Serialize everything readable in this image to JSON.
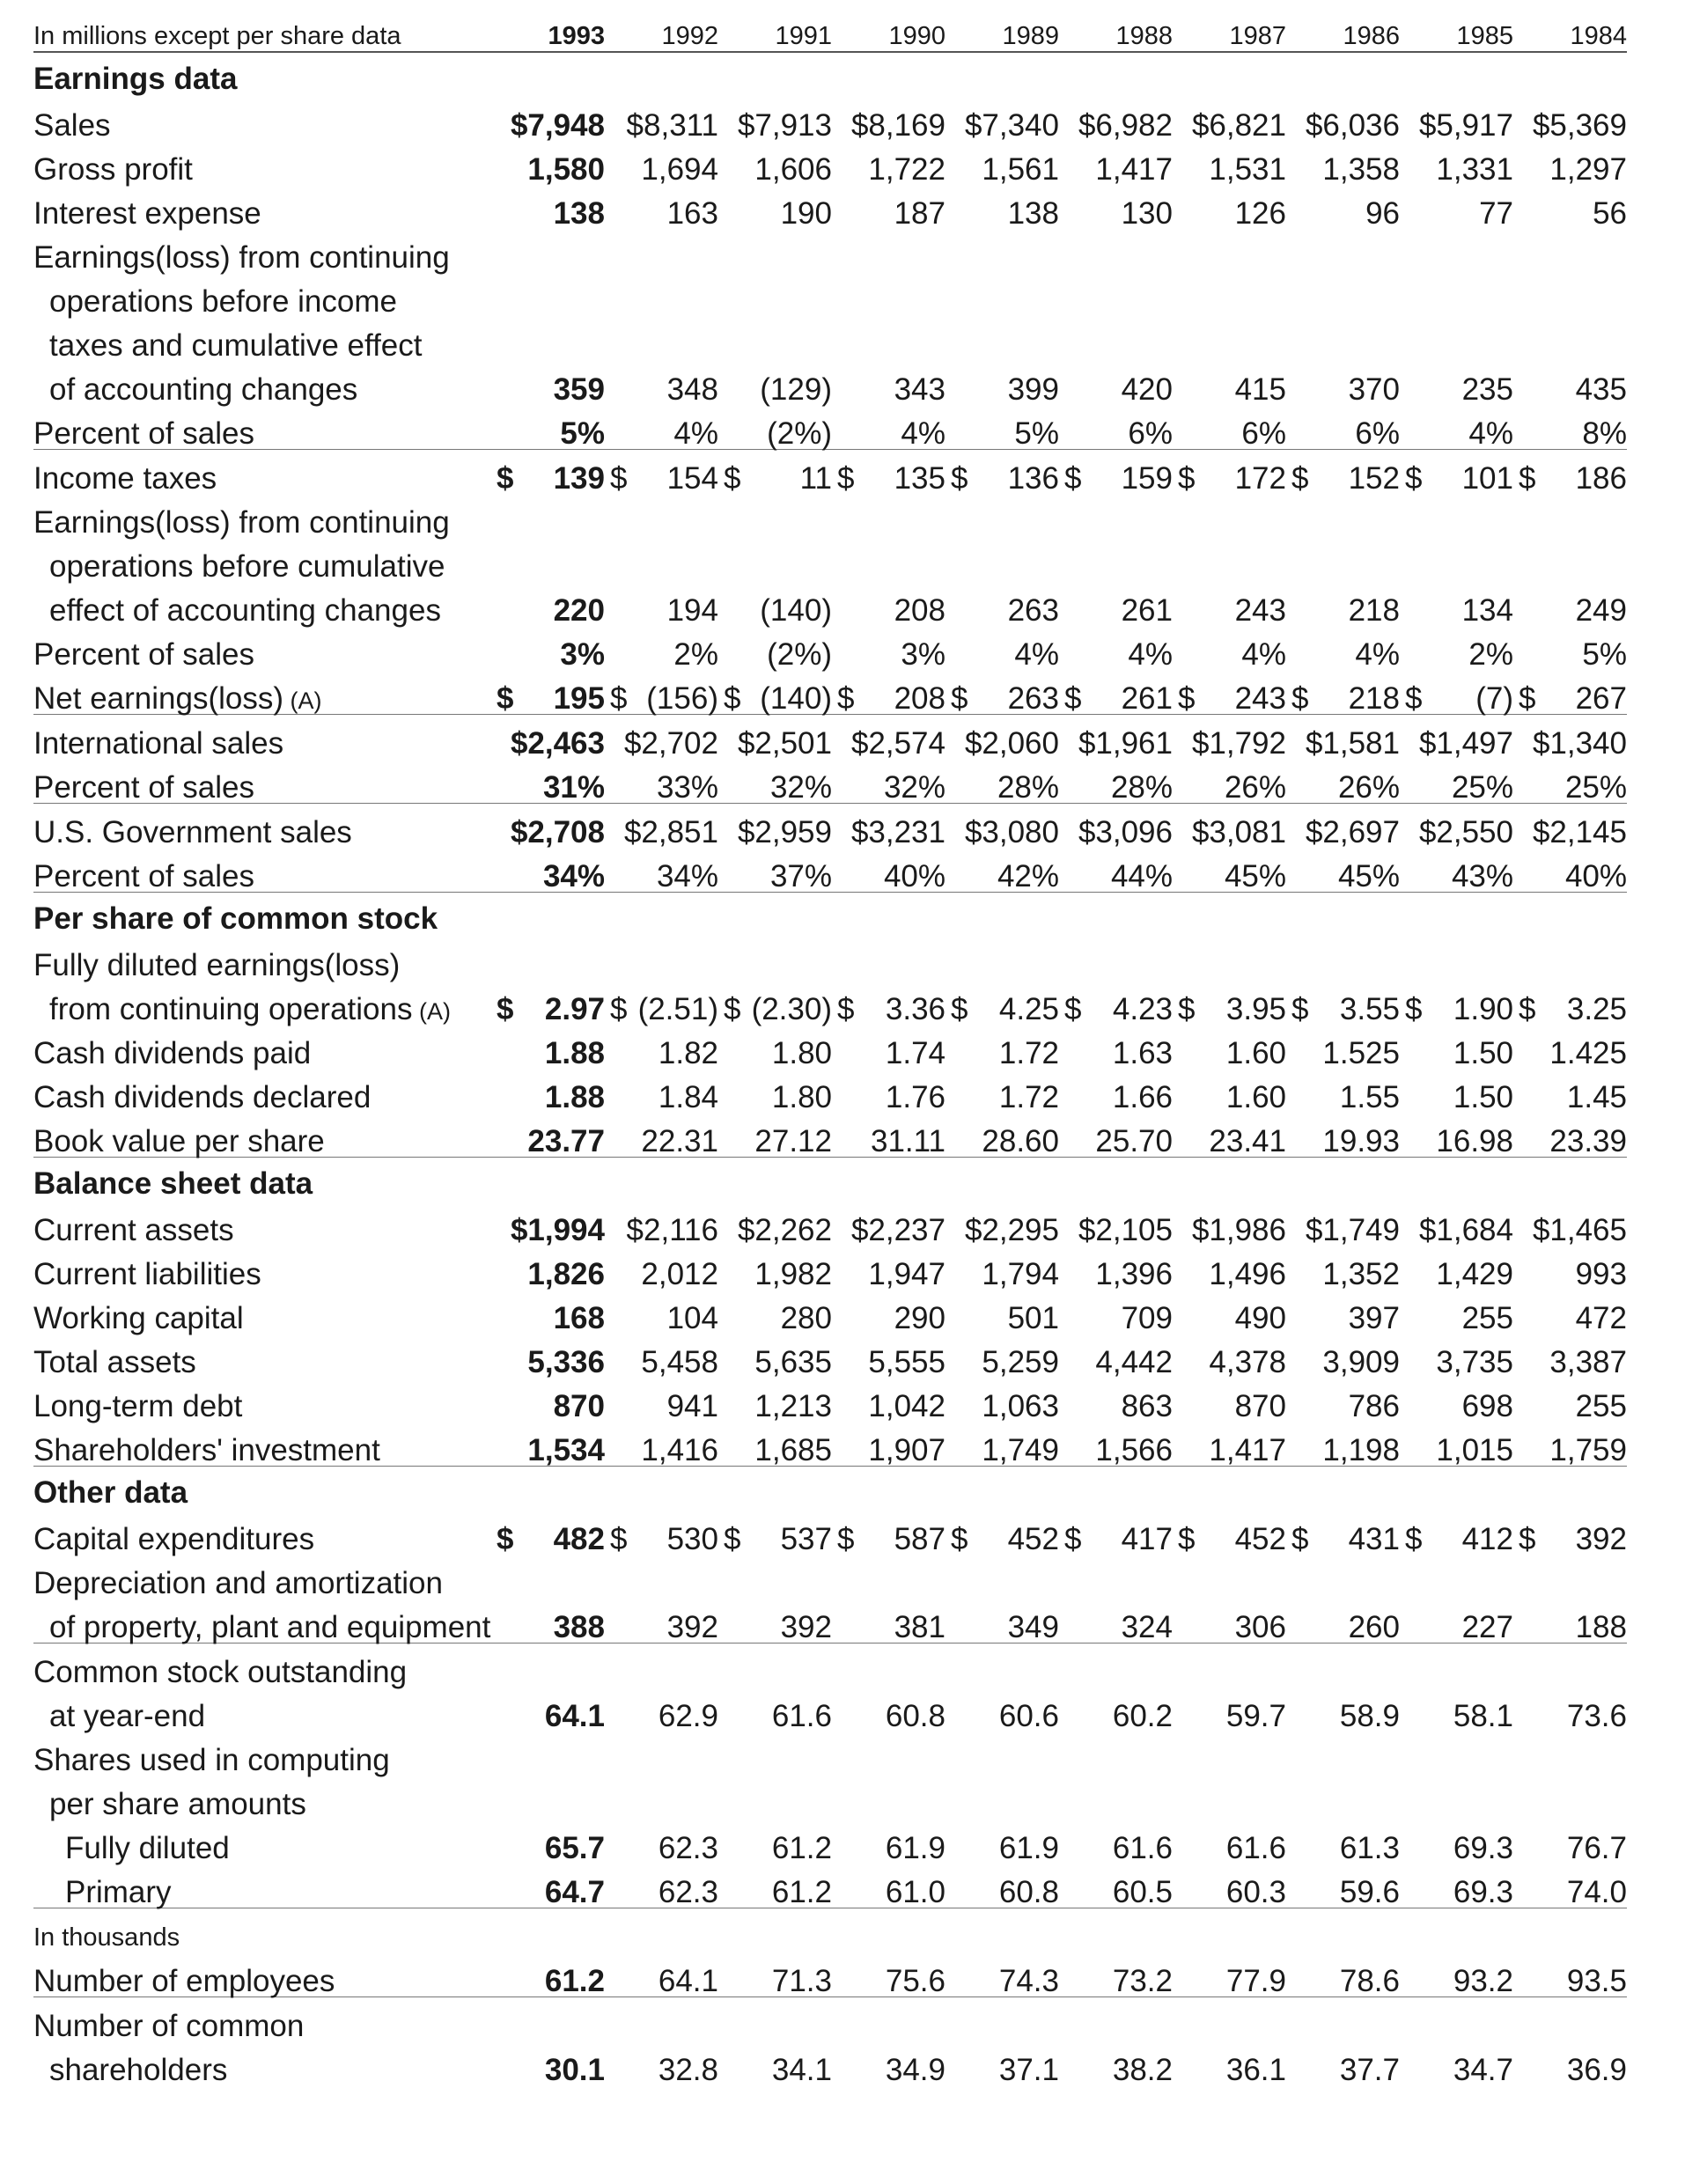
{
  "header": {
    "label": "In millions except per share data",
    "years": [
      "1993",
      "1992",
      "1991",
      "1990",
      "1989",
      "1988",
      "1987",
      "1986",
      "1985",
      "1984"
    ]
  },
  "earnings_data": {
    "title": "Earnings data",
    "rows": [
      {
        "label": "Sales",
        "dollar": true,
        "values": [
          "7,948",
          "8,311",
          "7,913",
          "8,169",
          "7,340",
          "6,982",
          "6,821",
          "6,036",
          "5,917",
          "5,369"
        ],
        "style": "inline"
      },
      {
        "label": "Gross profit",
        "values": [
          "1,580",
          "1,694",
          "1,606",
          "1,722",
          "1,561",
          "1,417",
          "1,531",
          "1,358",
          "1,331",
          "1,297"
        ]
      },
      {
        "label": "Interest expense",
        "values": [
          "138",
          "163",
          "190",
          "187",
          "138",
          "130",
          "126",
          "96",
          "77",
          "56"
        ]
      },
      {
        "label_lines": [
          "Earnings(loss) from continuing",
          "operations before income",
          "taxes and cumulative effect",
          "of accounting changes"
        ],
        "values": [
          "359",
          "348",
          "(129)",
          "343",
          "399",
          "420",
          "415",
          "370",
          "235",
          "435"
        ]
      },
      {
        "label": "Percent of sales",
        "values": [
          "5%",
          "4%",
          "(2%)",
          "4%",
          "5%",
          "6%",
          "6%",
          "6%",
          "4%",
          "8%"
        ]
      },
      {
        "label": "Income taxes",
        "dollar": true,
        "values": [
          "139",
          "154",
          "11",
          "135",
          "136",
          "159",
          "172",
          "152",
          "101",
          "186"
        ]
      },
      {
        "label_lines": [
          "Earnings(loss) from continuing",
          "operations before cumulative",
          "effect of accounting changes"
        ],
        "values": [
          "220",
          "194",
          "(140)",
          "208",
          "263",
          "261",
          "243",
          "218",
          "134",
          "249"
        ]
      },
      {
        "label": "Percent of sales",
        "values": [
          "3%",
          "2%",
          "(2%)",
          "3%",
          "4%",
          "4%",
          "4%",
          "4%",
          "2%",
          "5%"
        ]
      },
      {
        "label": "Net earnings(loss)",
        "note": "(A)",
        "dollar": true,
        "values": [
          "195",
          "(156)",
          "(140)",
          "208",
          "263",
          "261",
          "243",
          "218",
          "(7)",
          "267"
        ]
      },
      {
        "label": "International sales",
        "dollar": true,
        "style": "inline",
        "values": [
          "2,463",
          "2,702",
          "2,501",
          "2,574",
          "2,060",
          "1,961",
          "1,792",
          "1,581",
          "1,497",
          "1,340"
        ]
      },
      {
        "label": "Percent of sales",
        "values": [
          "31%",
          "33%",
          "32%",
          "32%",
          "28%",
          "28%",
          "26%",
          "26%",
          "25%",
          "25%"
        ]
      },
      {
        "label": "U.S. Government sales",
        "dollar": true,
        "style": "inline",
        "values": [
          "2,708",
          "2,851",
          "2,959",
          "3,231",
          "3,080",
          "3,096",
          "3,081",
          "2,697",
          "2,550",
          "2,145"
        ]
      },
      {
        "label": "Percent of sales",
        "values": [
          "34%",
          "34%",
          "37%",
          "40%",
          "42%",
          "44%",
          "45%",
          "45%",
          "43%",
          "40%"
        ]
      }
    ]
  },
  "per_share": {
    "title": "Per share of common stock",
    "rows": [
      {
        "label_lines": [
          "Fully diluted earnings(loss)",
          "from continuing operations"
        ],
        "note": "(A)",
        "dollar": true,
        "values": [
          "2.97",
          "(2.51)",
          "(2.30)",
          "3.36",
          "4.25",
          "4.23",
          "3.95",
          "3.55",
          "1.90",
          "3.25"
        ]
      },
      {
        "label": "Cash dividends paid",
        "values": [
          "1.88",
          "1.82",
          "1.80",
          "1.74",
          "1.72",
          "1.63",
          "1.60",
          "1.525",
          "1.50",
          "1.425"
        ]
      },
      {
        "label": "Cash dividends declared",
        "values": [
          "1.88",
          "1.84",
          "1.80",
          "1.76",
          "1.72",
          "1.66",
          "1.60",
          "1.55",
          "1.50",
          "1.45"
        ]
      },
      {
        "label": "Book value per share",
        "values": [
          "23.77",
          "22.31",
          "27.12",
          "31.11",
          "28.60",
          "25.70",
          "23.41",
          "19.93",
          "16.98",
          "23.39"
        ]
      }
    ]
  },
  "balance_sheet": {
    "title": "Balance sheet data",
    "rows": [
      {
        "label": "Current assets",
        "dollar": true,
        "style": "inline",
        "values": [
          "1,994",
          "2,116",
          "2,262",
          "2,237",
          "2,295",
          "2,105",
          "1,986",
          "1,749",
          "1,684",
          "1,465"
        ]
      },
      {
        "label": "Current liabilities",
        "values": [
          "1,826",
          "2,012",
          "1,982",
          "1,947",
          "1,794",
          "1,396",
          "1,496",
          "1,352",
          "1,429",
          "993"
        ]
      },
      {
        "label": "Working capital",
        "values": [
          "168",
          "104",
          "280",
          "290",
          "501",
          "709",
          "490",
          "397",
          "255",
          "472"
        ]
      },
      {
        "label": "Total assets",
        "values": [
          "5,336",
          "5,458",
          "5,635",
          "5,555",
          "5,259",
          "4,442",
          "4,378",
          "3,909",
          "3,735",
          "3,387"
        ]
      },
      {
        "label": "Long-term debt",
        "values": [
          "870",
          "941",
          "1,213",
          "1,042",
          "1,063",
          "863",
          "870",
          "786",
          "698",
          "255"
        ]
      },
      {
        "label": "Shareholders' investment",
        "values": [
          "1,534",
          "1,416",
          "1,685",
          "1,907",
          "1,749",
          "1,566",
          "1,417",
          "1,198",
          "1,015",
          "1,759"
        ]
      }
    ]
  },
  "other_data": {
    "title": "Other data",
    "rows": [
      {
        "label": "Capital expenditures",
        "dollar": true,
        "values": [
          "482",
          "530",
          "537",
          "587",
          "452",
          "417",
          "452",
          "431",
          "412",
          "392"
        ]
      },
      {
        "label_lines": [
          "Depreciation and amortization",
          "of property, plant and equipment"
        ],
        "values": [
          "388",
          "392",
          "392",
          "381",
          "349",
          "324",
          "306",
          "260",
          "227",
          "188"
        ]
      },
      {
        "label_lines": [
          "Common stock outstanding",
          "at year-end"
        ],
        "values": [
          "64.1",
          "62.9",
          "61.6",
          "60.8",
          "60.6",
          "60.2",
          "59.7",
          "58.9",
          "58.1",
          "73.6"
        ]
      },
      {
        "label_lines": [
          "Shares used in computing",
          "per share amounts"
        ],
        "values": null
      },
      {
        "label": "Fully diluted",
        "indent": 2,
        "values": [
          "65.7",
          "62.3",
          "61.2",
          "61.9",
          "61.9",
          "61.6",
          "61.6",
          "61.3",
          "69.3",
          "76.7"
        ]
      },
      {
        "label": "Primary",
        "indent": 2,
        "values": [
          "64.7",
          "62.3",
          "61.2",
          "61.0",
          "60.8",
          "60.5",
          "60.3",
          "59.6",
          "69.3",
          "74.0"
        ]
      }
    ]
  },
  "thousands": {
    "unit_label": "In thousands",
    "rows": [
      {
        "label": "Number of employees",
        "values": [
          "61.2",
          "64.1",
          "71.3",
          "75.6",
          "74.3",
          "73.2",
          "77.9",
          "78.6",
          "93.2",
          "93.5"
        ]
      },
      {
        "label_lines": [
          "Number of common",
          "shareholders"
        ],
        "values": [
          "30.1",
          "32.8",
          "34.1",
          "34.9",
          "37.1",
          "38.2",
          "36.1",
          "37.7",
          "34.7",
          "36.9"
        ]
      }
    ]
  }
}
